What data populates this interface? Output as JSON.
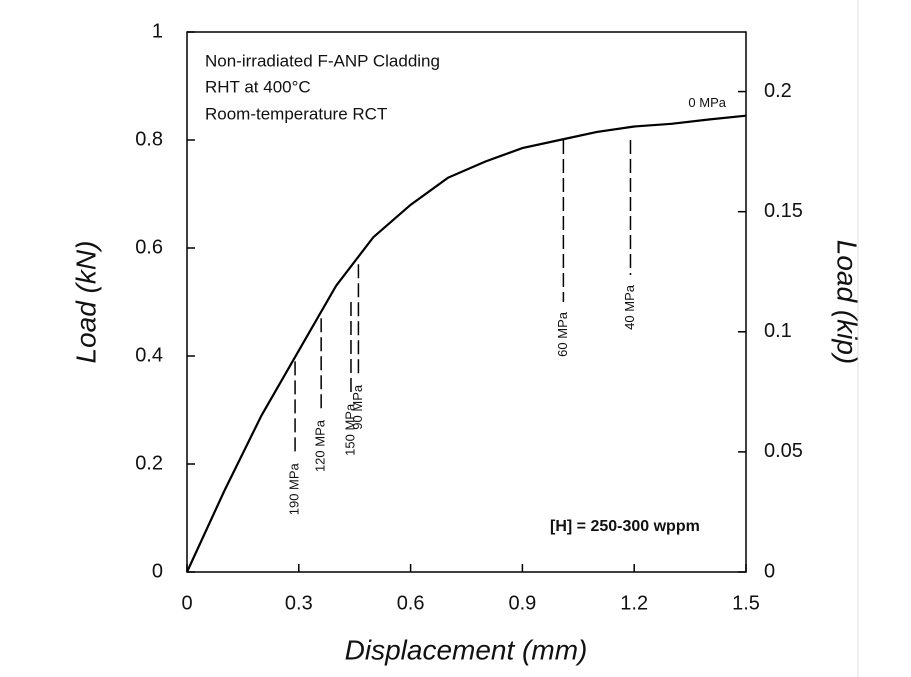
{
  "chart_data": {
    "type": "line",
    "annotations": [
      "Non-irradiated F-ANP Cladding",
      "RHT at 400°C",
      "Room-temperature RCT"
    ],
    "note": "[H] = 250-300 wppm",
    "xlabel": "Displacement (mm)",
    "ylabel": "Load (kN)",
    "y2label": "Load (kip)",
    "x": [
      0,
      0.1,
      0.2,
      0.3,
      0.4,
      0.5,
      0.6,
      0.7,
      0.8,
      0.9,
      1.0,
      1.1,
      1.2,
      1.3,
      1.4,
      1.5
    ],
    "values": [
      0,
      0.15,
      0.29,
      0.41,
      0.53,
      0.62,
      0.68,
      0.73,
      0.76,
      0.785,
      0.8,
      0.815,
      0.825,
      0.83,
      0.838,
      0.845
    ],
    "color": "#000000",
    "end_label": "0 MPa",
    "drops": [
      {
        "label": "190 MPa",
        "x": 0.29,
        "top": 0.39,
        "bottom": 0.22
      },
      {
        "label": "120 MPa",
        "x": 0.36,
        "top": 0.47,
        "bottom": 0.3
      },
      {
        "label": "150 MPa",
        "x": 0.44,
        "top": 0.5,
        "bottom": 0.33
      },
      {
        "label": "90 MPa",
        "x": 0.46,
        "top": 0.57,
        "bottom": 0.365
      },
      {
        "label": "60 MPa",
        "x": 1.01,
        "top": 0.8,
        "bottom": 0.5
      },
      {
        "label": "40 MPa",
        "x": 1.19,
        "top": 0.8,
        "bottom": 0.55
      }
    ],
    "xlim": [
      0,
      1.5
    ],
    "xticks": [
      0,
      0.3,
      0.6,
      0.9,
      1.2,
      1.5
    ],
    "ylim": [
      0,
      1
    ],
    "yticks": [
      0,
      0.2,
      0.4,
      0.6,
      0.8,
      1
    ],
    "y2lim": [
      0,
      0.2248
    ],
    "y2ticks": [
      0,
      0.05,
      0.1,
      0.15,
      0.2
    ]
  }
}
